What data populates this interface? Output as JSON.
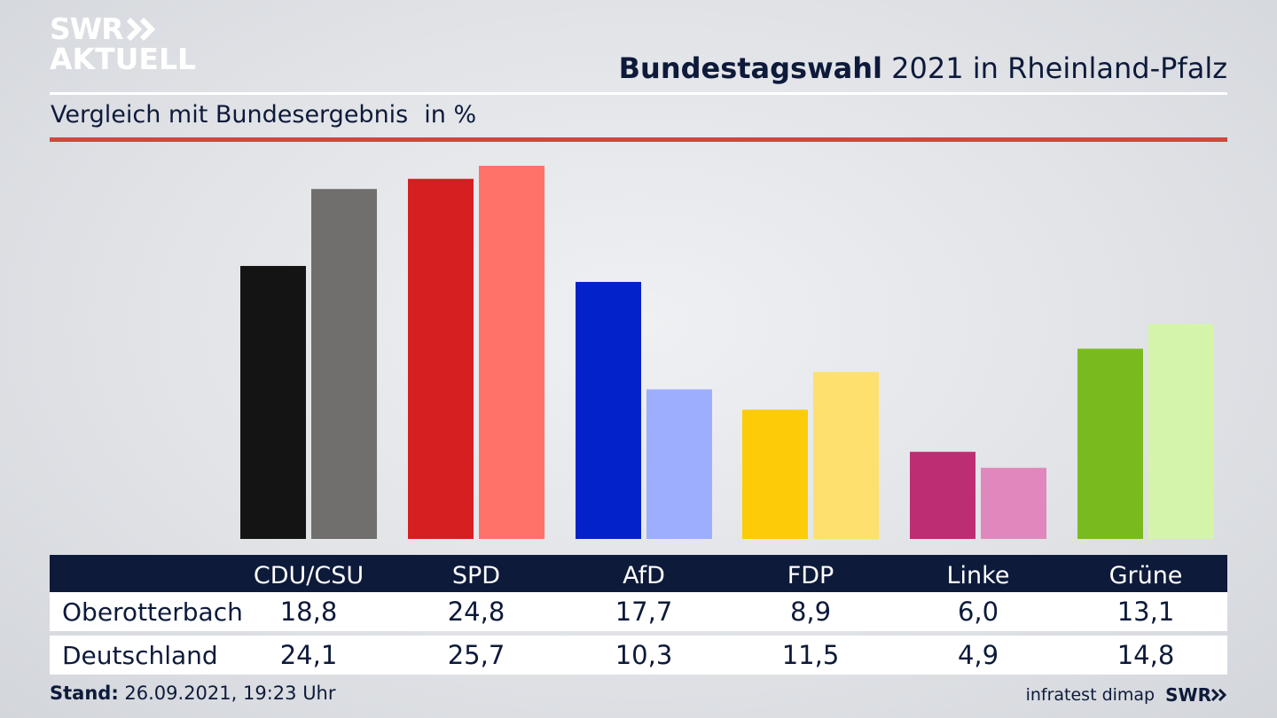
{
  "brand": {
    "logo_line1": "SWR",
    "logo_line2": "AKTUELL",
    "footer_logo": "SWR"
  },
  "header": {
    "title_bold": "Bundestagswahl",
    "title_rest": "2021 in Rheinland-Pfalz"
  },
  "subtitle": {
    "text": "Vergleich mit Bundesergebnis",
    "unit": "in %"
  },
  "chart_data": {
    "type": "bar",
    "categories": [
      "CDU/CSU",
      "SPD",
      "AfD",
      "FDP",
      "Linke",
      "Grüne"
    ],
    "series": [
      {
        "name": "Oberotterbach",
        "values": [
          18.8,
          24.8,
          17.7,
          8.9,
          6.0,
          13.1
        ]
      },
      {
        "name": "Deutschland",
        "values": [
          24.1,
          25.7,
          10.3,
          11.5,
          4.9,
          14.8
        ]
      }
    ],
    "ylim": [
      0,
      25.7
    ],
    "colors": {
      "Oberotterbach": [
        "#141414",
        "#d51f21",
        "#0422c9",
        "#fdcc08",
        "#bd2d73",
        "#79bb1f"
      ],
      "Deutschland": [
        "#706f6d",
        "#ff7269",
        "#9daeff",
        "#fde06e",
        "#e088bd",
        "#d4f5a9"
      ]
    },
    "title": "Bundestagswahl 2021 in Rheinland-Pfalz",
    "grid": false
  },
  "table": {
    "headers": [
      "CDU/CSU",
      "SPD",
      "AfD",
      "FDP",
      "Linke",
      "Grüne"
    ],
    "rows": [
      {
        "label": "Oberotterbach",
        "values": [
          "18,8",
          "24,8",
          "17,7",
          "8,9",
          "6,0",
          "13,1"
        ]
      },
      {
        "label": "Deutschland",
        "values": [
          "24,1",
          "25,7",
          "10,3",
          "11,5",
          "4,9",
          "14,8"
        ]
      }
    ]
  },
  "footer": {
    "stand_label": "Stand:",
    "stand_value": "26.09.2021, 19:23 Uhr",
    "source": "infratest dimap"
  }
}
